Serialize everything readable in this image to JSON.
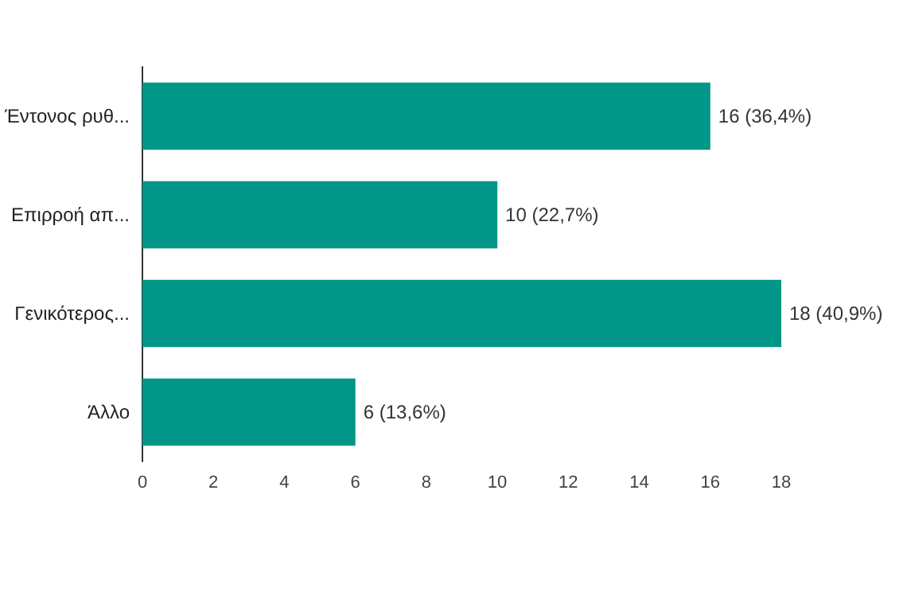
{
  "chart_data": {
    "type": "bar",
    "orientation": "horizontal",
    "categories": [
      "Έντονος ρυθ...",
      "Επιρροή απ...",
      "Γενικότερος...",
      "Άλλο"
    ],
    "values": [
      16,
      10,
      18,
      6
    ],
    "color": "#009688",
    "value_labels": [
      "16 (36,4%)",
      "10 (22,7%)",
      "18 (40,9%)",
      "6 (13,6%)"
    ],
    "xlim": [
      0,
      18
    ],
    "xticks": [
      0,
      2,
      4,
      6,
      8,
      10,
      12,
      14,
      16,
      18
    ]
  }
}
